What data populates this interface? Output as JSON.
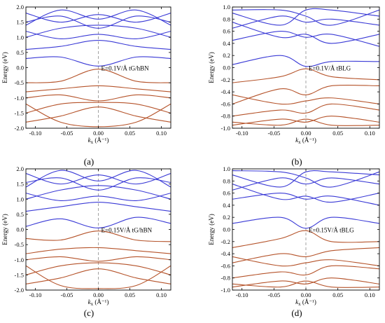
{
  "colors": {
    "conduction": "#3a3ad6",
    "valence": "#b5532a",
    "frame": "#000000",
    "dashed": "#999999"
  },
  "chart_data": [
    {
      "type": "line",
      "panel_label": "(a)",
      "ylabel": "Energy (eV)",
      "xlabel": "k",
      "xlabel_sub": "x",
      "xlabel_unit": " (Å⁻¹)",
      "annotation": "E=0.1V/Å tG/hBN",
      "xlim": [
        -0.115,
        0.115
      ],
      "ylim": [
        -2.0,
        2.0
      ],
      "xticks": [
        "-0.10",
        "-0.05",
        "0.00",
        "0.05",
        "0.10"
      ],
      "yticks": [
        "2.0",
        "1.5",
        "1.0",
        "0.5",
        "0.0",
        "-0.5",
        "-1.0",
        "-1.5",
        "-2.0"
      ],
      "series": [
        {
          "band": "conduction",
          "x": [
            -0.115,
            -0.06,
            0.0,
            0.06,
            0.115
          ],
          "y": [
            0.3,
            0.35,
            0.05,
            0.35,
            0.3
          ]
        },
        {
          "band": "conduction",
          "x": [
            -0.115,
            -0.06,
            0.0,
            0.06,
            0.115
          ],
          "y": [
            0.6,
            0.7,
            0.9,
            0.7,
            0.6
          ]
        },
        {
          "band": "conduction",
          "x": [
            -0.115,
            -0.06,
            0.0,
            0.06,
            0.115
          ],
          "y": [
            1.2,
            0.95,
            1.1,
            0.95,
            1.2
          ]
        },
        {
          "band": "conduction",
          "x": [
            -0.115,
            -0.06,
            0.0,
            0.06,
            0.115
          ],
          "y": [
            1.0,
            1.3,
            1.4,
            1.3,
            1.0
          ]
        },
        {
          "band": "conduction",
          "x": [
            -0.115,
            -0.06,
            0.0,
            0.06,
            0.115
          ],
          "y": [
            1.5,
            1.7,
            1.3,
            1.7,
            1.5
          ]
        },
        {
          "band": "conduction",
          "x": [
            -0.115,
            -0.06,
            0.0,
            0.06,
            0.115
          ],
          "y": [
            1.8,
            1.5,
            1.75,
            1.5,
            1.8
          ]
        },
        {
          "band": "conduction",
          "x": [
            -0.115,
            -0.06,
            0.0,
            0.06,
            0.115
          ],
          "y": [
            1.4,
            1.9,
            1.6,
            1.9,
            1.4
          ]
        },
        {
          "band": "valence",
          "x": [
            -0.115,
            -0.06,
            0.0,
            0.06,
            0.115
          ],
          "y": [
            -0.5,
            -0.45,
            -0.05,
            -0.45,
            -0.5
          ]
        },
        {
          "band": "valence",
          "x": [
            -0.115,
            -0.06,
            0.0,
            0.06,
            0.115
          ],
          "y": [
            -0.8,
            -0.7,
            -0.6,
            -0.7,
            -0.8
          ]
        },
        {
          "band": "valence",
          "x": [
            -0.115,
            -0.06,
            0.0,
            0.06,
            0.115
          ],
          "y": [
            -1.0,
            -0.9,
            -1.1,
            -0.9,
            -1.0
          ]
        },
        {
          "band": "valence",
          "x": [
            -0.115,
            -0.06,
            0.0,
            0.06,
            0.115
          ],
          "y": [
            -1.5,
            -1.2,
            -1.15,
            -1.2,
            -1.5
          ]
        },
        {
          "band": "valence",
          "x": [
            -0.115,
            -0.06,
            0.0,
            0.06,
            0.115
          ],
          "y": [
            -1.8,
            -1.6,
            -1.3,
            -1.6,
            -1.8
          ]
        },
        {
          "band": "valence",
          "x": [
            -0.115,
            -0.06,
            0.0,
            0.06,
            0.115
          ],
          "y": [
            -1.2,
            -1.8,
            -1.95,
            -1.8,
            -1.2
          ]
        }
      ]
    },
    {
      "type": "line",
      "panel_label": "(b)",
      "ylabel": "Energy (eV)",
      "xlabel": "k",
      "xlabel_sub": "x",
      "xlabel_unit": " (Å⁻¹)",
      "annotation": "E=0.1V/Å tBLG",
      "xlim": [
        -0.115,
        0.115
      ],
      "ylim": [
        -1.0,
        1.0
      ],
      "xticks": [
        "-0.10",
        "-0.05",
        "0.00",
        "0.05",
        "0.10"
      ],
      "yticks": [
        "1.0",
        "0.8",
        "0.6",
        "0.4",
        "0.2",
        "0.0",
        "-0.2",
        "-0.4",
        "-0.6",
        "-0.8",
        "-1.0"
      ],
      "series": [
        {
          "band": "conduction",
          "x": [
            -0.115,
            -0.04,
            0.0,
            0.04,
            0.115
          ],
          "y": [
            0.05,
            0.2,
            0.02,
            0.1,
            0.1
          ]
        },
        {
          "band": "conduction",
          "x": [
            -0.115,
            -0.04,
            0.0,
            0.04,
            0.115
          ],
          "y": [
            0.45,
            0.6,
            0.5,
            0.55,
            0.35
          ]
        },
        {
          "band": "conduction",
          "x": [
            -0.115,
            -0.04,
            0.0,
            0.04,
            0.115
          ],
          "y": [
            0.75,
            0.5,
            0.55,
            0.4,
            0.55
          ]
        },
        {
          "band": "conduction",
          "x": [
            -0.115,
            -0.04,
            0.0,
            0.04,
            0.115
          ],
          "y": [
            0.65,
            0.85,
            0.75,
            0.8,
            0.7
          ]
        },
        {
          "band": "conduction",
          "x": [
            -0.115,
            -0.04,
            0.0,
            0.04,
            0.115
          ],
          "y": [
            0.9,
            0.7,
            0.95,
            0.95,
            0.85
          ]
        },
        {
          "band": "conduction",
          "x": [
            -0.115,
            -0.04,
            0.0,
            0.04,
            0.115
          ],
          "y": [
            0.95,
            0.95,
            0.85,
            0.7,
            0.95
          ]
        },
        {
          "band": "valence",
          "x": [
            -0.115,
            -0.04,
            0.0,
            0.04,
            0.115
          ],
          "y": [
            -0.25,
            -0.15,
            -0.02,
            -0.15,
            -0.2
          ]
        },
        {
          "band": "valence",
          "x": [
            -0.115,
            -0.04,
            0.0,
            0.04,
            0.115
          ],
          "y": [
            -0.6,
            -0.35,
            -0.45,
            -0.3,
            -0.3
          ]
        },
        {
          "band": "valence",
          "x": [
            -0.115,
            -0.04,
            0.0,
            0.04,
            0.115
          ],
          "y": [
            -0.45,
            -0.6,
            -0.55,
            -0.5,
            -0.6
          ]
        },
        {
          "band": "valence",
          "x": [
            -0.115,
            -0.04,
            0.0,
            0.04,
            0.115
          ],
          "y": [
            -0.8,
            -0.7,
            -0.75,
            -0.6,
            -0.7
          ]
        },
        {
          "band": "valence",
          "x": [
            -0.115,
            -0.04,
            0.0,
            0.04,
            0.115
          ],
          "y": [
            -0.95,
            -0.85,
            -0.9,
            -0.8,
            -0.9
          ]
        },
        {
          "band": "valence",
          "x": [
            -0.115,
            -0.04,
            0.0,
            0.04,
            0.115
          ],
          "y": [
            -0.9,
            -0.95,
            -0.85,
            -0.95,
            -0.95
          ]
        }
      ]
    },
    {
      "type": "line",
      "panel_label": "(c)",
      "ylabel": "Energy (eV)",
      "xlabel": "k",
      "xlabel_sub": "x",
      "xlabel_unit": " (Å⁻¹)",
      "annotation": "E=0.15V/Å tG/hBN",
      "xlim": [
        -0.115,
        0.115
      ],
      "ylim": [
        -2.0,
        2.0
      ],
      "xticks": [
        "-0.10",
        "-0.05",
        "0.00",
        "0.05",
        "0.10"
      ],
      "yticks": [
        "2.0",
        "1.5",
        "1.0",
        "0.5",
        "0.0",
        "-0.5",
        "-1.0",
        "-1.5",
        "-2.0"
      ],
      "series": [
        {
          "band": "conduction",
          "x": [
            -0.115,
            -0.06,
            0.0,
            0.06,
            0.115
          ],
          "y": [
            0.1,
            0.35,
            0.05,
            0.4,
            0.2
          ]
        },
        {
          "band": "conduction",
          "x": [
            -0.115,
            -0.06,
            0.0,
            0.06,
            0.115
          ],
          "y": [
            0.6,
            0.75,
            0.9,
            0.75,
            0.6
          ]
        },
        {
          "band": "conduction",
          "x": [
            -0.115,
            -0.06,
            0.0,
            0.06,
            0.115
          ],
          "y": [
            1.2,
            0.95,
            1.1,
            0.95,
            1.2
          ]
        },
        {
          "band": "conduction",
          "x": [
            -0.115,
            -0.06,
            0.0,
            0.06,
            0.115
          ],
          "y": [
            1.0,
            1.3,
            1.45,
            1.3,
            1.0
          ]
        },
        {
          "band": "conduction",
          "x": [
            -0.115,
            -0.06,
            0.0,
            0.06,
            0.115
          ],
          "y": [
            1.55,
            1.7,
            1.3,
            1.7,
            1.55
          ]
        },
        {
          "band": "conduction",
          "x": [
            -0.115,
            -0.06,
            0.0,
            0.06,
            0.115
          ],
          "y": [
            1.85,
            1.5,
            1.8,
            1.5,
            1.85
          ]
        },
        {
          "band": "conduction",
          "x": [
            -0.115,
            -0.06,
            0.0,
            0.06,
            0.115
          ],
          "y": [
            1.4,
            1.95,
            1.6,
            1.95,
            1.4
          ]
        },
        {
          "band": "valence",
          "x": [
            -0.115,
            -0.06,
            0.0,
            0.06,
            0.115
          ],
          "y": [
            -0.3,
            -0.35,
            -0.05,
            -0.35,
            -0.4
          ]
        },
        {
          "band": "valence",
          "x": [
            -0.115,
            -0.06,
            0.0,
            0.06,
            0.115
          ],
          "y": [
            -0.8,
            -0.65,
            -0.6,
            -0.7,
            -0.8
          ]
        },
        {
          "band": "valence",
          "x": [
            -0.115,
            -0.06,
            0.0,
            0.06,
            0.115
          ],
          "y": [
            -1.0,
            -0.9,
            -1.05,
            -0.9,
            -1.0
          ]
        },
        {
          "band": "valence",
          "x": [
            -0.115,
            -0.06,
            0.0,
            0.06,
            0.115
          ],
          "y": [
            -1.5,
            -1.2,
            -1.1,
            -1.2,
            -1.5
          ]
        },
        {
          "band": "valence",
          "x": [
            -0.115,
            -0.06,
            0.0,
            0.06,
            0.115
          ],
          "y": [
            -1.8,
            -1.6,
            -1.3,
            -1.6,
            -1.8
          ]
        },
        {
          "band": "valence",
          "x": [
            -0.115,
            -0.06,
            0.0,
            0.06,
            0.115
          ],
          "y": [
            -1.2,
            -1.85,
            -1.95,
            -1.85,
            -1.2
          ]
        }
      ]
    },
    {
      "type": "line",
      "panel_label": "(d)",
      "ylabel": "Energy (eV)",
      "xlabel": "k",
      "xlabel_sub": "x",
      "xlabel_unit": " (Å⁻¹)",
      "annotation": "E=0.15V/Å tBLG",
      "xlim": [
        -0.115,
        0.115
      ],
      "ylim": [
        -1.0,
        1.0
      ],
      "xticks": [
        "-0.10",
        "-0.05",
        "0.00",
        "0.05",
        "0.10"
      ],
      "yticks": [
        "1.0",
        "0.8",
        "0.6",
        "0.4",
        "0.2",
        "0.0",
        "-0.2",
        "-0.4",
        "-0.6",
        "-0.8",
        "-1.0"
      ],
      "series": [
        {
          "band": "conduction",
          "x": [
            -0.115,
            -0.04,
            0.0,
            0.04,
            0.115
          ],
          "y": [
            0.1,
            0.2,
            0.02,
            0.2,
            0.1
          ]
        },
        {
          "band": "conduction",
          "x": [
            -0.115,
            -0.04,
            0.0,
            0.04,
            0.115
          ],
          "y": [
            0.5,
            0.6,
            0.5,
            0.55,
            0.4
          ]
        },
        {
          "band": "conduction",
          "x": [
            -0.115,
            -0.04,
            0.0,
            0.04,
            0.115
          ],
          "y": [
            0.75,
            0.5,
            0.55,
            0.45,
            0.6
          ]
        },
        {
          "band": "conduction",
          "x": [
            -0.115,
            -0.04,
            0.0,
            0.04,
            0.115
          ],
          "y": [
            0.65,
            0.85,
            0.75,
            0.85,
            0.75
          ]
        },
        {
          "band": "conduction",
          "x": [
            -0.115,
            -0.04,
            0.0,
            0.04,
            0.115
          ],
          "y": [
            0.9,
            0.7,
            0.95,
            0.95,
            0.9
          ]
        },
        {
          "band": "conduction",
          "x": [
            -0.115,
            -0.04,
            0.0,
            0.04,
            0.115
          ],
          "y": [
            0.97,
            0.95,
            0.85,
            0.7,
            0.95
          ]
        },
        {
          "band": "valence",
          "x": [
            -0.115,
            -0.04,
            0.0,
            0.04,
            0.115
          ],
          "y": [
            -0.3,
            -0.15,
            -0.02,
            -0.2,
            -0.2
          ]
        },
        {
          "band": "valence",
          "x": [
            -0.115,
            -0.04,
            0.0,
            0.04,
            0.115
          ],
          "y": [
            -0.55,
            -0.4,
            -0.45,
            -0.35,
            -0.3
          ]
        },
        {
          "band": "valence",
          "x": [
            -0.115,
            -0.04,
            0.0,
            0.04,
            0.115
          ],
          "y": [
            -0.45,
            -0.6,
            -0.55,
            -0.5,
            -0.6
          ]
        },
        {
          "band": "valence",
          "x": [
            -0.115,
            -0.04,
            0.0,
            0.04,
            0.115
          ],
          "y": [
            -0.8,
            -0.7,
            -0.75,
            -0.6,
            -0.65
          ]
        },
        {
          "band": "valence",
          "x": [
            -0.115,
            -0.04,
            0.0,
            0.04,
            0.115
          ],
          "y": [
            -0.95,
            -0.85,
            -0.9,
            -0.8,
            -0.9
          ]
        },
        {
          "band": "valence",
          "x": [
            -0.115,
            -0.04,
            0.0,
            0.04,
            0.115
          ],
          "y": [
            -0.9,
            -0.95,
            -0.85,
            -0.95,
            -0.95
          ]
        }
      ]
    }
  ]
}
